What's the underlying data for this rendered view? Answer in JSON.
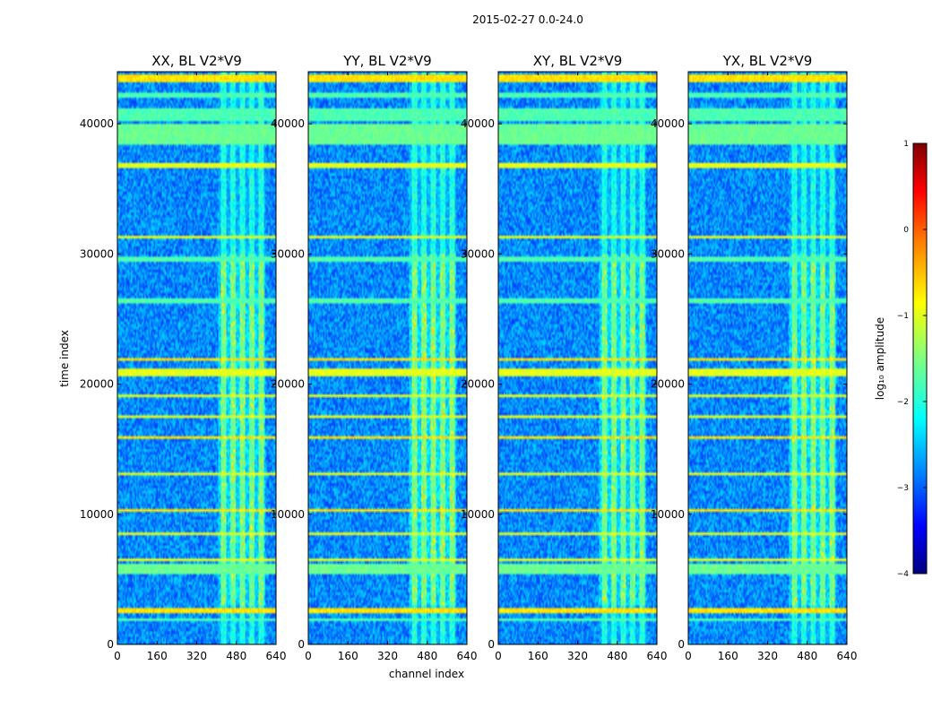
{
  "chart_data": {
    "type": "heatmap",
    "suptitle": "2015-02-27 0.0-24.0",
    "xlabel": "channel index",
    "ylabel": "time index",
    "xlim": [
      0,
      640
    ],
    "ylim": [
      0,
      44000
    ],
    "xticks": [
      0,
      160,
      320,
      480,
      640
    ],
    "yticks": [
      0,
      10000,
      20000,
      30000,
      40000
    ],
    "panels": [
      {
        "title": "XX, BL V2*V9",
        "strength": 1.0
      },
      {
        "title": "YY, BL V2*V9",
        "strength": 1.15
      },
      {
        "title": "XY, BL V2*V9",
        "strength": 0.9
      },
      {
        "title": "YX, BL V2*V9",
        "strength": 0.95
      }
    ],
    "colorbar": {
      "label": "log₁₀ amplitude",
      "range": [
        -4,
        1
      ],
      "ticks": [
        "1",
        "0",
        "−1",
        "−2",
        "−3",
        "−4"
      ],
      "colormap": [
        "#00007f",
        "#0000ff",
        "#007fff",
        "#00ffff",
        "#7fff7f",
        "#ffff00",
        "#ff7f00",
        "#ff0000",
        "#7f0000"
      ]
    },
    "rfi_channel_band": [
      410,
      600
    ],
    "flagged_time_bands": [
      {
        "t0": 43300,
        "t1": 43900,
        "level": 0.65
      },
      {
        "t0": 42000,
        "t1": 42400,
        "level": 0.45
      },
      {
        "t0": 40200,
        "t1": 41200,
        "level": 0.45
      },
      {
        "t0": 38500,
        "t1": 40000,
        "level": 0.48
      },
      {
        "t0": 36600,
        "t1": 37100,
        "level": 0.6
      },
      {
        "t0": 35000,
        "t1": 35150,
        "level": 0.45
      },
      {
        "t0": 31300,
        "t1": 31500,
        "level": 0.6
      },
      {
        "t0": 29500,
        "t1": 29750,
        "level": 0.45
      },
      {
        "t0": 26300,
        "t1": 26550,
        "level": 0.45
      },
      {
        "t0": 21800,
        "t1": 22100,
        "level": 0.65
      },
      {
        "t0": 20600,
        "t1": 21200,
        "level": 0.6
      },
      {
        "t0": 19000,
        "t1": 19150,
        "level": 0.6
      },
      {
        "t0": 17400,
        "t1": 17550,
        "level": 0.6
      },
      {
        "t0": 15700,
        "t1": 16000,
        "level": 0.65
      },
      {
        "t0": 13000,
        "t1": 13200,
        "level": 0.6
      },
      {
        "t0": 10200,
        "t1": 10400,
        "level": 0.65
      },
      {
        "t0": 8400,
        "t1": 8600,
        "level": 0.6
      },
      {
        "t0": 6400,
        "t1": 6600,
        "level": 0.6
      },
      {
        "t0": 5400,
        "t1": 6100,
        "level": 0.48
      },
      {
        "t0": 2300,
        "t1": 2800,
        "level": 0.65
      },
      {
        "t0": 1700,
        "t1": 2000,
        "level": 0.45
      }
    ]
  }
}
